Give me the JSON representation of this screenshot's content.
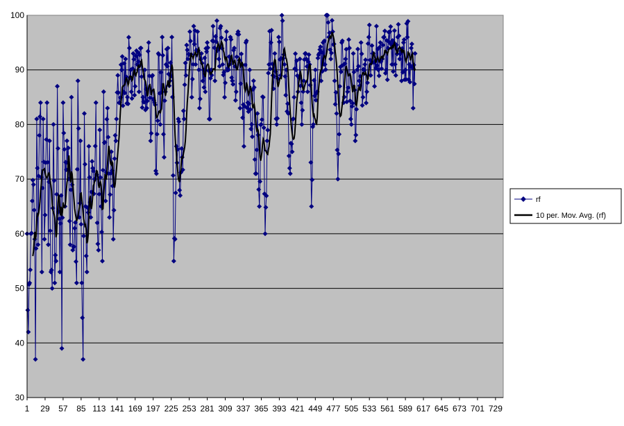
{
  "chart_data": {
    "type": "line",
    "title": "",
    "xlabel": "",
    "ylabel": "",
    "x_count": 707,
    "xlim": [
      1,
      741
    ],
    "ylim": [
      30,
      100
    ],
    "y_ticks": [
      30,
      40,
      50,
      60,
      70,
      80,
      90,
      100
    ],
    "x_tick_labels": [
      1,
      29,
      57,
      85,
      113,
      141,
      169,
      197,
      225,
      253,
      281,
      309,
      337,
      365,
      393,
      421,
      449,
      477,
      505,
      533,
      561,
      589,
      617,
      645,
      673,
      701,
      729
    ],
    "grid": "horizontal",
    "legend_position": "right",
    "colors": {
      "plot_bg": "#c0c0c0",
      "rf": "#000080",
      "moving_avg": "#000000",
      "grid": "#000000"
    },
    "series": [
      {
        "name": "rf",
        "marker": "diamond",
        "anchors": [
          [
            1,
            60
          ],
          [
            3,
            42
          ],
          [
            5,
            51
          ],
          [
            7,
            60
          ],
          [
            9,
            66
          ],
          [
            11,
            69
          ],
          [
            13,
            59
          ],
          [
            14,
            37
          ],
          [
            16,
            81
          ],
          [
            18,
            58
          ],
          [
            20,
            78
          ],
          [
            22,
            84
          ],
          [
            24,
            53
          ],
          [
            26,
            81
          ],
          [
            28,
            59
          ],
          [
            30,
            73
          ],
          [
            32,
            84
          ],
          [
            34,
            58
          ],
          [
            36,
            77
          ],
          [
            38,
            53
          ],
          [
            40,
            50
          ],
          [
            42,
            80
          ],
          [
            44,
            51
          ],
          [
            46,
            55
          ],
          [
            48,
            87
          ],
          [
            50,
            64
          ],
          [
            52,
            53
          ],
          [
            54,
            67
          ],
          [
            55,
            39
          ],
          [
            57,
            84
          ],
          [
            60,
            65
          ],
          [
            63,
            77
          ],
          [
            66,
            70
          ],
          [
            68,
            58
          ],
          [
            70,
            85
          ],
          [
            72,
            57
          ],
          [
            75,
            61
          ],
          [
            78,
            51
          ],
          [
            80,
            88
          ],
          [
            82,
            63
          ],
          [
            84,
            77
          ],
          [
            86,
            51
          ],
          [
            88,
            37
          ],
          [
            90,
            82
          ],
          [
            92,
            65
          ],
          [
            94,
            53
          ],
          [
            97,
            76
          ],
          [
            100,
            63
          ],
          [
            103,
            72
          ],
          [
            106,
            70
          ],
          [
            108,
            84
          ],
          [
            110,
            62
          ],
          [
            112,
            57
          ],
          [
            114,
            79
          ],
          [
            116,
            65
          ],
          [
            118,
            55
          ],
          [
            120,
            86
          ],
          [
            123,
            66
          ],
          [
            126,
            83
          ],
          [
            129,
            63
          ],
          [
            132,
            75
          ],
          [
            135,
            59
          ],
          [
            138,
            78
          ],
          [
            140,
            81
          ],
          [
            142,
            89
          ],
          [
            145,
            84
          ],
          [
            148,
            90
          ],
          [
            151,
            86
          ],
          [
            154,
            92
          ],
          [
            157,
            85
          ],
          [
            160,
            94
          ],
          [
            163,
            86
          ],
          [
            166,
            93
          ],
          [
            169,
            87
          ],
          [
            172,
            91
          ],
          [
            175,
            86
          ],
          [
            178,
            94
          ],
          [
            181,
            85
          ],
          [
            184,
            90
          ],
          [
            187,
            83
          ],
          [
            190,
            95
          ],
          [
            193,
            77
          ],
          [
            196,
            89
          ],
          [
            199,
            84
          ],
          [
            202,
            71
          ],
          [
            205,
            93
          ],
          [
            208,
            80
          ],
          [
            211,
            96
          ],
          [
            214,
            74
          ],
          [
            217,
            91
          ],
          [
            220,
            94
          ],
          [
            223,
            88
          ],
          [
            226,
            96
          ],
          [
            229,
            55
          ],
          [
            231,
            59
          ],
          [
            233,
            76
          ],
          [
            236,
            81
          ],
          [
            239,
            67
          ],
          [
            242,
            74
          ],
          [
            245,
            81
          ],
          [
            248,
            89
          ],
          [
            251,
            92
          ],
          [
            254,
            97
          ],
          [
            257,
            85
          ],
          [
            260,
            98
          ],
          [
            263,
            91
          ],
          [
            266,
            97
          ],
          [
            269,
            83
          ],
          [
            272,
            93
          ],
          [
            275,
            90
          ],
          [
            278,
            86
          ],
          [
            281,
            95
          ],
          [
            284,
            81
          ],
          [
            287,
            90
          ],
          [
            290,
            98
          ],
          [
            293,
            88
          ],
          [
            296,
            99
          ],
          [
            299,
            92
          ],
          [
            302,
            98
          ],
          [
            305,
            91
          ],
          [
            308,
            85
          ],
          [
            311,
            97
          ],
          [
            314,
            90
          ],
          [
            317,
            96
          ],
          [
            320,
            88
          ],
          [
            323,
            94
          ],
          [
            326,
            86
          ],
          [
            329,
            97
          ],
          [
            332,
            83
          ],
          [
            335,
            91
          ],
          [
            338,
            76
          ],
          [
            341,
            95
          ],
          [
            344,
            84
          ],
          [
            347,
            90
          ],
          [
            350,
            80
          ],
          [
            353,
            88
          ],
          [
            356,
            71
          ],
          [
            359,
            82
          ],
          [
            362,
            65
          ],
          [
            365,
            80
          ],
          [
            368,
            85
          ],
          [
            371,
            60
          ],
          [
            374,
            77
          ],
          [
            377,
            91
          ],
          [
            380,
            95
          ],
          [
            383,
            89
          ],
          [
            386,
            93
          ],
          [
            389,
            80
          ],
          [
            392,
            96
          ],
          [
            395,
            89
          ],
          [
            398,
            99
          ],
          [
            401,
            91
          ],
          [
            404,
            90
          ],
          [
            407,
            82
          ],
          [
            410,
            71
          ],
          [
            413,
            75
          ],
          [
            416,
            85
          ],
          [
            419,
            90
          ],
          [
            422,
            86
          ],
          [
            425,
            92
          ],
          [
            428,
            80
          ],
          [
            431,
            88
          ],
          [
            434,
            93
          ],
          [
            437,
            86
          ],
          [
            440,
            91
          ],
          [
            443,
            65
          ],
          [
            446,
            80
          ],
          [
            449,
            90
          ],
          [
            452,
            86
          ],
          [
            455,
            93
          ],
          [
            458,
            88
          ],
          [
            461,
            95
          ],
          [
            464,
            91
          ],
          [
            467,
            100
          ],
          [
            470,
            96
          ],
          [
            473,
            92
          ],
          [
            476,
            97
          ],
          [
            479,
            88
          ],
          [
            482,
            82
          ],
          [
            484,
            70
          ],
          [
            487,
            87
          ],
          [
            490,
            95
          ],
          [
            493,
            84
          ],
          [
            496,
            92
          ],
          [
            499,
            86
          ],
          [
            502,
            94
          ],
          [
            505,
            80
          ],
          [
            508,
            93
          ],
          [
            511,
            77
          ],
          [
            514,
            90
          ],
          [
            517,
            88
          ],
          [
            520,
            95
          ],
          [
            523,
            85
          ],
          [
            526,
            91
          ],
          [
            529,
            86
          ],
          [
            532,
            96
          ],
          [
            535,
            89
          ],
          [
            538,
            93
          ],
          [
            541,
            87
          ],
          [
            544,
            98
          ],
          [
            547,
            90
          ],
          [
            550,
            95
          ],
          [
            553,
            92
          ],
          [
            556,
            96
          ],
          [
            559,
            90
          ],
          [
            562,
            94
          ],
          [
            565,
            97
          ],
          [
            568,
            91
          ],
          [
            571,
            95
          ],
          [
            574,
            89
          ],
          [
            577,
            96
          ],
          [
            580,
            92
          ],
          [
            583,
            88
          ],
          [
            586,
            95
          ],
          [
            589,
            90
          ],
          [
            592,
            96
          ],
          [
            595,
            91
          ],
          [
            598,
            94
          ],
          [
            601,
            83
          ],
          [
            604,
            93
          ]
        ]
      },
      {
        "name": "10 per. Mov. Avg. (rf)",
        "period": 10
      }
    ]
  }
}
